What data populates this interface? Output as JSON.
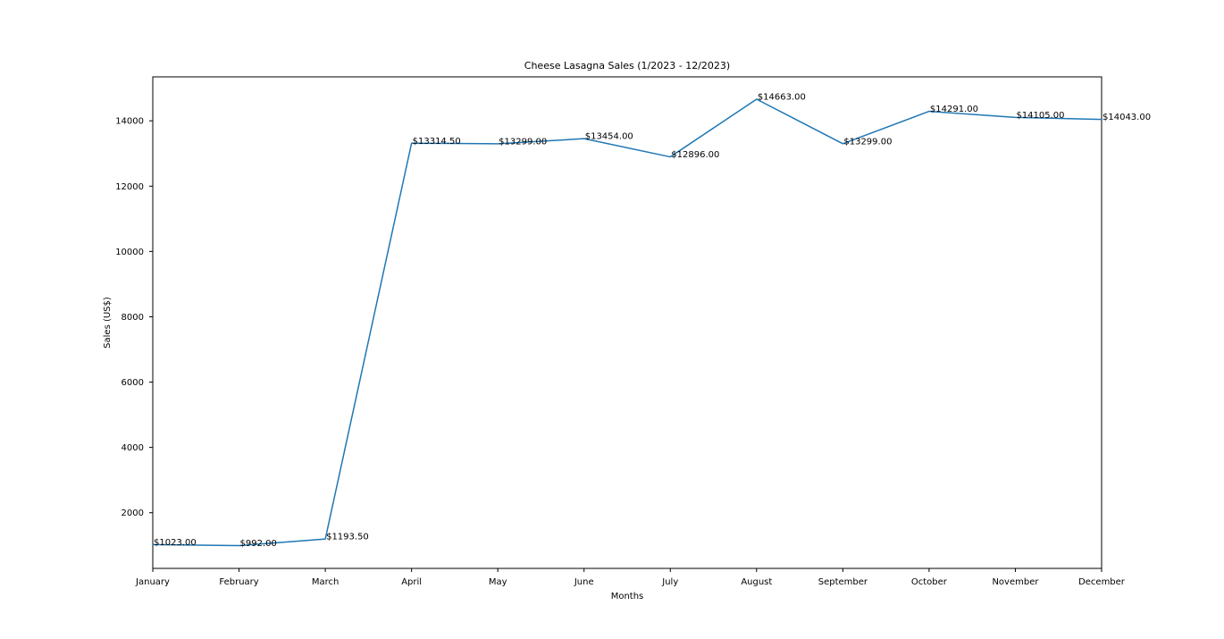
{
  "chart_data": {
    "type": "line",
    "title": "Cheese Lasagna Sales (1/2023 - 12/2023)",
    "xlabel": "Months",
    "ylabel": "Sales (US$)",
    "categories": [
      "January",
      "February",
      "March",
      "April",
      "May",
      "June",
      "July",
      "August",
      "September",
      "October",
      "November",
      "December"
    ],
    "values": [
      1023.0,
      992.0,
      1193.5,
      13314.5,
      13299.0,
      13454.0,
      12896.0,
      14663.0,
      13299.0,
      14291.0,
      14105.0,
      14043.0
    ],
    "data_labels": [
      "$1023.00",
      "$992.00",
      "$1193.50",
      "$13314.50",
      "$13299.00",
      "$13454.00",
      "$12896.00",
      "$14663.00",
      "$13299.00",
      "$14291.00",
      "$14105.00",
      "$14043.00"
    ],
    "yticks": [
      2000,
      4000,
      6000,
      8000,
      10000,
      12000,
      14000
    ],
    "ylim": [
      295.45,
      15346.6
    ],
    "grid": false,
    "line_color": "#1f77b4"
  }
}
